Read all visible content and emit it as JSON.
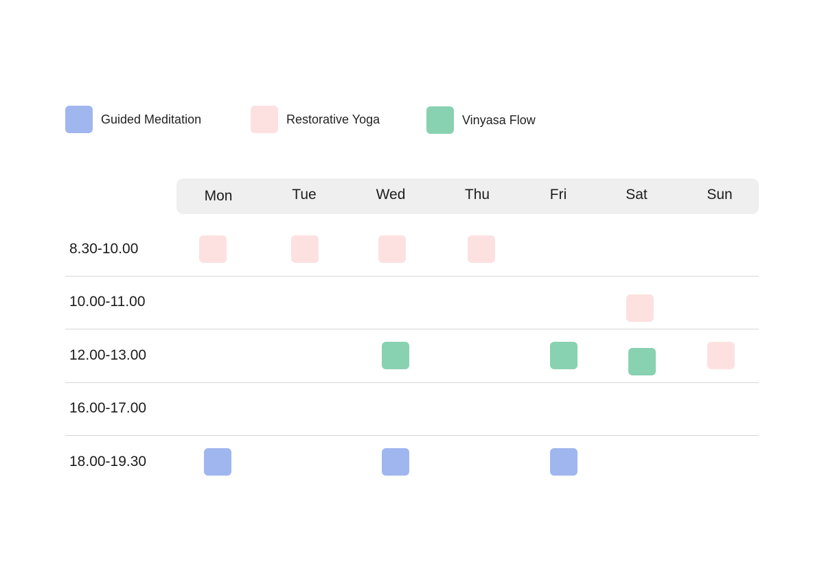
{
  "legend": [
    {
      "key": "meditation",
      "label": "Guided Meditation",
      "color": "#a0b6ef"
    },
    {
      "key": "restorative",
      "label": "Restorative Yoga",
      "color": "#fde1e1"
    },
    {
      "key": "vinyasa",
      "label": "Vinyasa Flow",
      "color": "#88d1b1"
    }
  ],
  "days": [
    "Mon",
    "Tue",
    "Wed",
    "Thu",
    "Fri",
    "Sat",
    "Sun"
  ],
  "times": [
    "8.30-10.00",
    "10.00-11.00",
    "12.00-13.00",
    "16.00-17.00",
    "18.00-19.30"
  ],
  "sessions": [
    {
      "time": "8.30-10.00",
      "day": "Mon",
      "type": "restorative"
    },
    {
      "time": "8.30-10.00",
      "day": "Tue",
      "type": "restorative"
    },
    {
      "time": "8.30-10.00",
      "day": "Wed",
      "type": "restorative"
    },
    {
      "time": "8.30-10.00",
      "day": "Thu",
      "type": "restorative"
    },
    {
      "time": "10.00-11.00",
      "day": "Sat",
      "type": "restorative"
    },
    {
      "time": "12.00-13.00",
      "day": "Wed",
      "type": "vinyasa"
    },
    {
      "time": "12.00-13.00",
      "day": "Fri",
      "type": "vinyasa"
    },
    {
      "time": "12.00-13.00",
      "day": "Sat",
      "type": "vinyasa"
    },
    {
      "time": "12.00-13.00",
      "day": "Sun",
      "type": "restorative"
    },
    {
      "time": "18.00-19.30",
      "day": "Mon",
      "type": "meditation"
    },
    {
      "time": "18.00-19.30",
      "day": "Wed",
      "type": "meditation"
    },
    {
      "time": "18.00-19.30",
      "day": "Fri",
      "type": "meditation"
    }
  ]
}
